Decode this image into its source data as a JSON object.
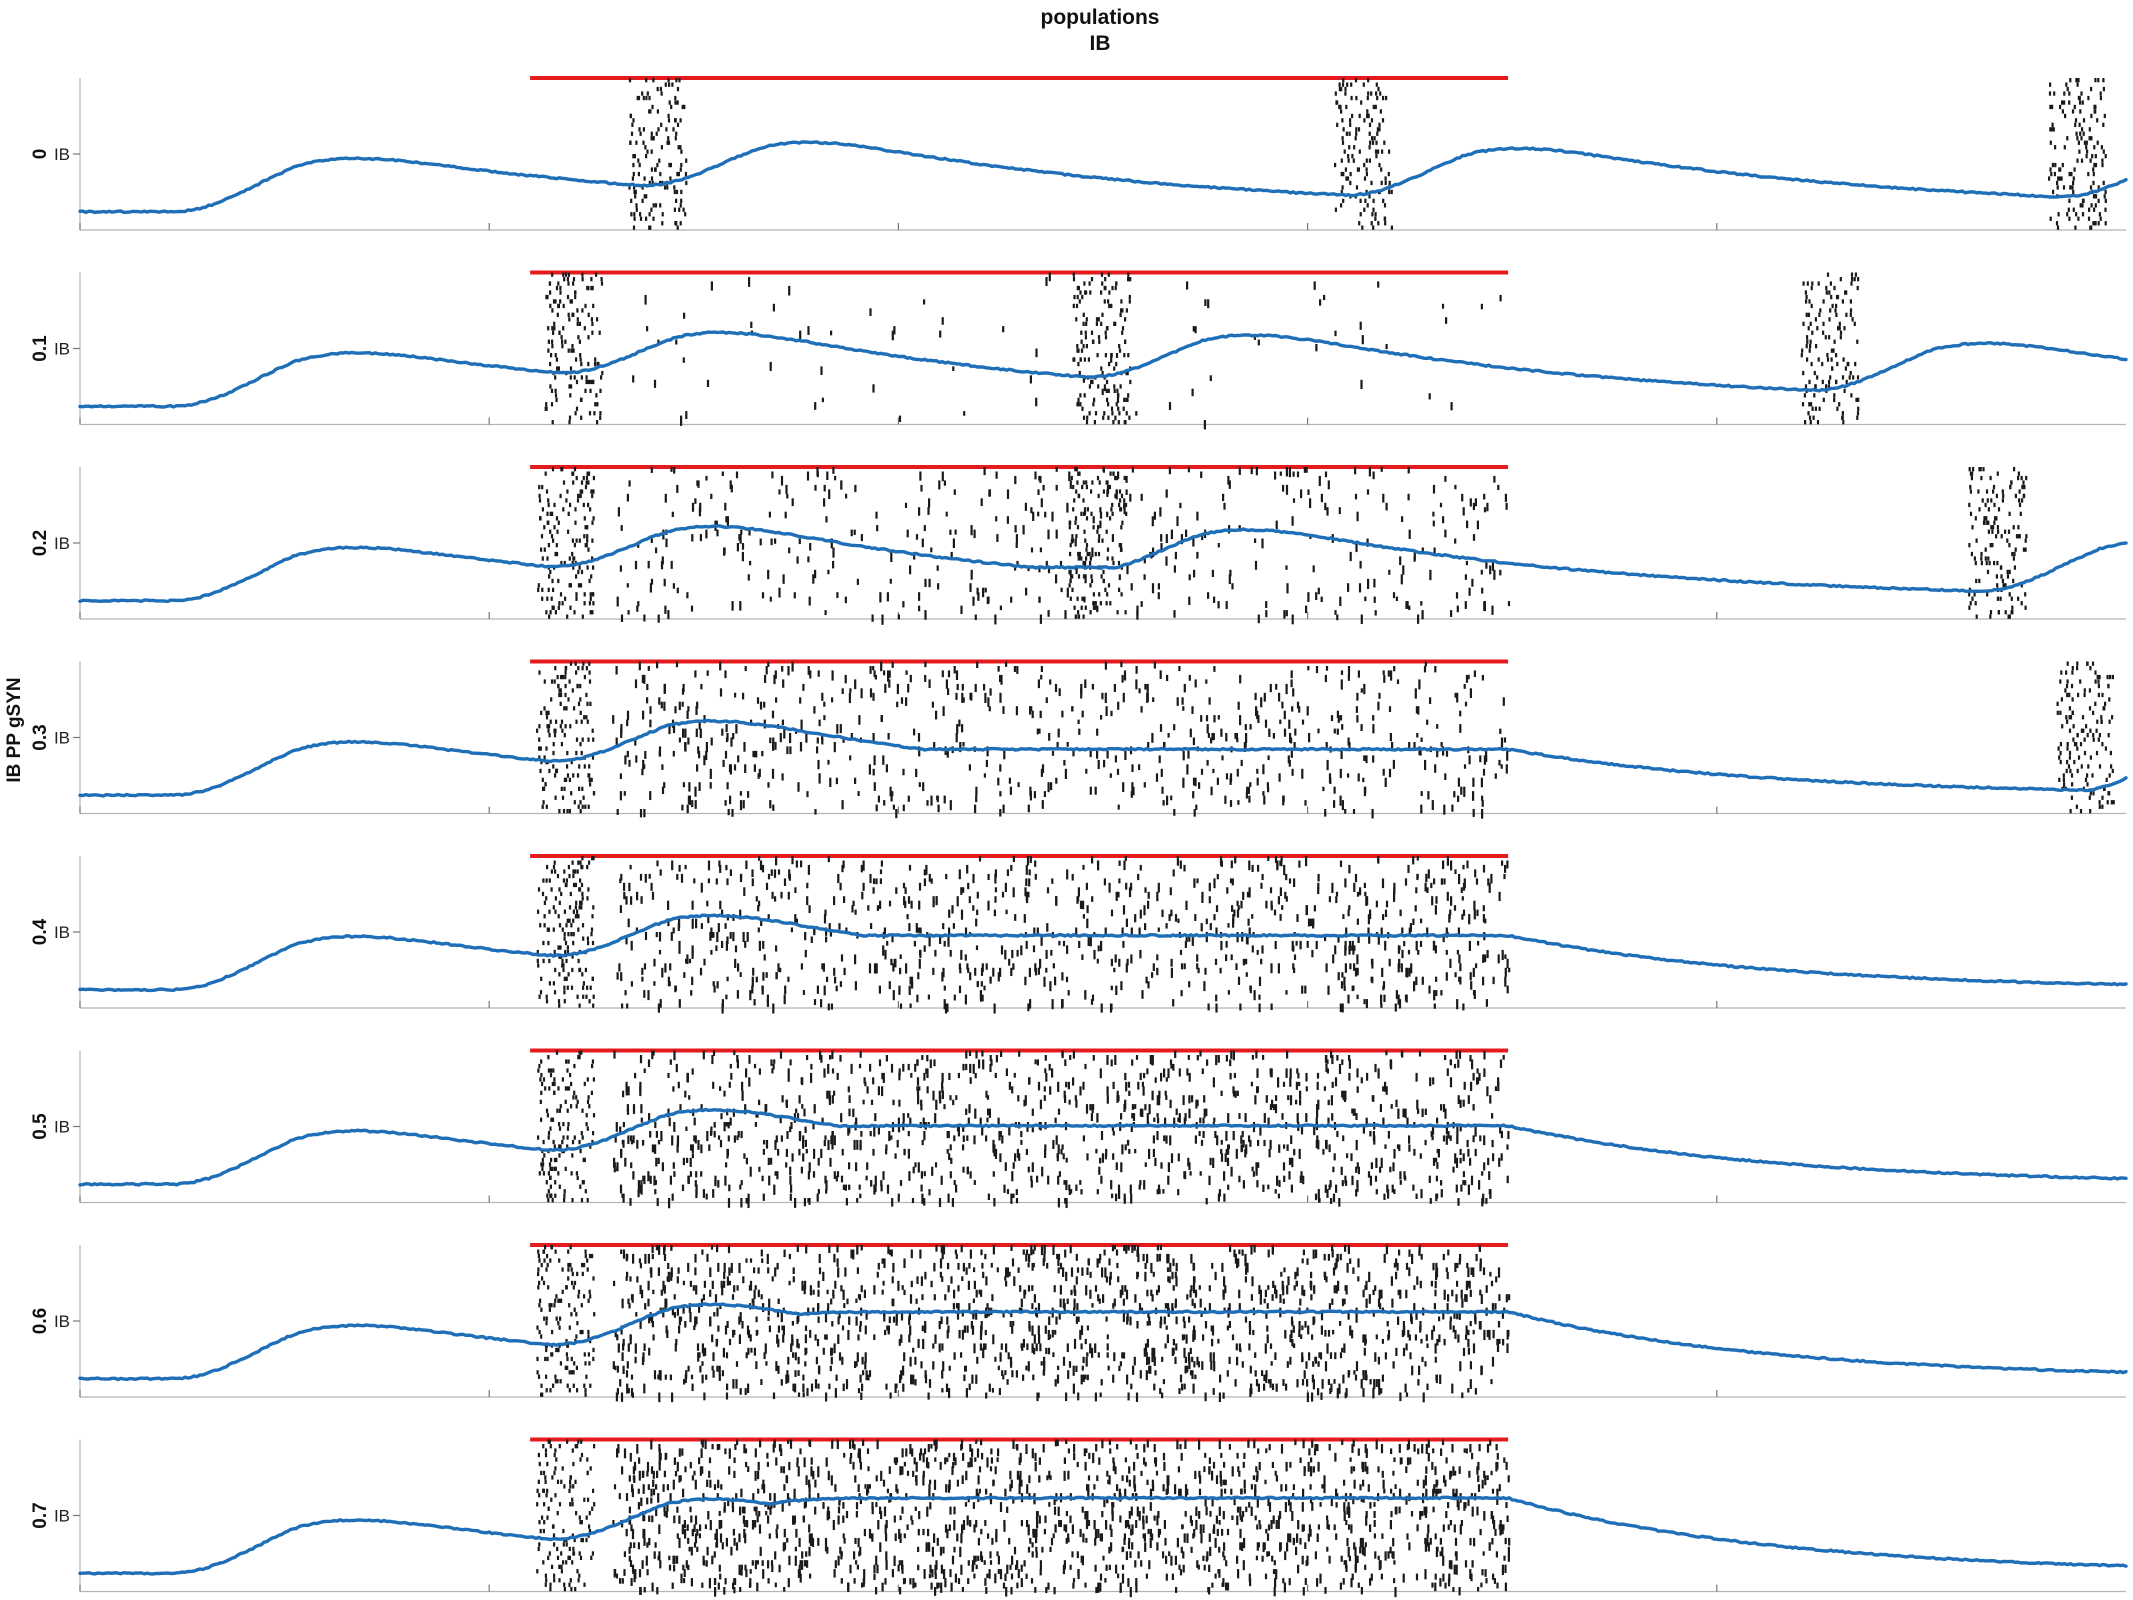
{
  "chart_data": {
    "type": "raster",
    "title_lines": [
      "populations",
      "IB"
    ],
    "ylabel": "IB PP gSYN",
    "population_tick_label": "IB",
    "x_ticks_count": 5,
    "colors": {
      "spikes": "#1a1a1a",
      "mean_trace": "#1f6fb8",
      "stimulus": "#e41a1c",
      "axis": "#b5b5b5"
    },
    "panels": [
      {
        "value": "0",
        "stim": [
          0.22,
          0.698
        ],
        "bursts": [
          0.272,
          0.617,
          0.966
        ],
        "sparse": 0.0,
        "plateau": null
      },
      {
        "value": "0.1",
        "stim": [
          0.22,
          0.698
        ],
        "bursts": [
          0.231,
          0.489,
          0.845
        ],
        "sparse": 0.05,
        "plateau": null
      },
      {
        "value": "0.2",
        "stim": [
          0.22,
          0.698
        ],
        "bursts": [
          0.227,
          0.487,
          0.927
        ],
        "sparse": 0.3,
        "plateau": 0.4
      },
      {
        "value": "0.3",
        "stim": [
          0.22,
          0.698
        ],
        "bursts": [
          0.227,
          0.97
        ],
        "sparse": 0.45,
        "plateau": 0.55
      },
      {
        "value": "0.4",
        "stim": [
          0.22,
          0.698
        ],
        "bursts": [
          0.227
        ],
        "sparse": 0.6,
        "plateau": 0.65
      },
      {
        "value": "0.5",
        "stim": [
          0.22,
          0.698
        ],
        "bursts": [
          0.227
        ],
        "sparse": 0.75,
        "plateau": 0.7
      },
      {
        "value": "0.6",
        "stim": [
          0.22,
          0.698
        ],
        "bursts": [
          0.227
        ],
        "sparse": 0.9,
        "plateau": 0.8
      },
      {
        "value": "0.7",
        "stim": [
          0.22,
          0.698
        ],
        "bursts": [
          0.227
        ],
        "sparse": 1.0,
        "plateau": 0.9
      }
    ]
  }
}
